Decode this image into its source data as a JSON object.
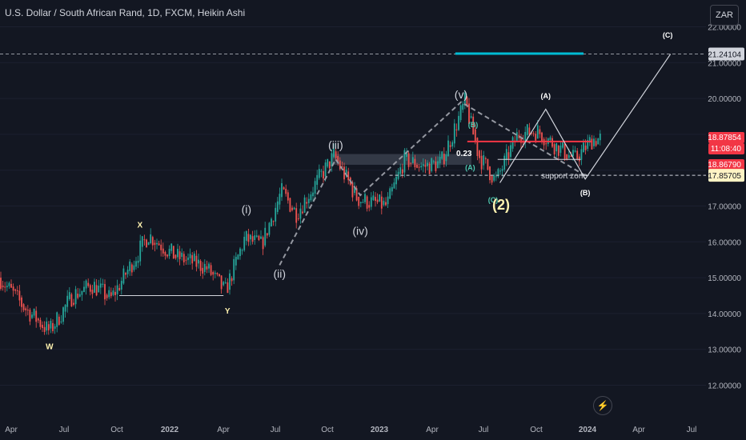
{
  "header": {
    "symbol_title": "U.S. Dollar / South African Rand, 1D, FXCM, Heikin Ashi",
    "currency_button": "ZAR"
  },
  "icons": {
    "alert": "lightning-bolt-icon"
  },
  "colors": {
    "background": "#131722",
    "up_candle": "#26a69a",
    "down_candle": "#ef5350",
    "wave_label": "#d1d4dc",
    "highlight_label": "#fff3b0",
    "teal_label": "#4ec9b0",
    "target_line": "#00bcd4"
  },
  "chart_data": {
    "type": "candlestick",
    "price_scale": {
      "ticks": [
        "22.00000",
        "21.00000",
        "20.00000",
        "19.00000",
        "18.00000",
        "17.00000",
        "16.00000",
        "15.00000",
        "14.00000",
        "13.00000",
        "12.00000"
      ],
      "current_price": "18.87854",
      "countdown": "11:08:40",
      "bid_price": "18.86790",
      "support_level": "17.85705",
      "target_level": "21.24104"
    },
    "time_axis": {
      "ticks": [
        "Apr",
        "Jul",
        "Oct",
        "2022",
        "Apr",
        "Jul",
        "Oct",
        "2023",
        "Apr",
        "Jul",
        "Oct",
        "2024",
        "Apr",
        "Jul"
      ]
    },
    "price_path": [
      {
        "date": "2021-03-10",
        "price": 15.0
      },
      {
        "date": "2021-04-20",
        "price": 14.2
      },
      {
        "date": "2021-06-05",
        "price": 13.5
      },
      {
        "date": "2021-07-15",
        "price": 14.5
      },
      {
        "date": "2021-08-20",
        "price": 14.8
      },
      {
        "date": "2021-09-20",
        "price": 14.4
      },
      {
        "date": "2021-11-25",
        "price": 16.2
      },
      {
        "date": "2022-01-10",
        "price": 15.6
      },
      {
        "date": "2022-03-05",
        "price": 15.3
      },
      {
        "date": "2022-04-08",
        "price": 14.6
      },
      {
        "date": "2022-05-12",
        "price": 16.1
      },
      {
        "date": "2022-06-10",
        "price": 15.9
      },
      {
        "date": "2022-07-15",
        "price": 17.4
      },
      {
        "date": "2022-08-10",
        "price": 16.8
      },
      {
        "date": "2022-10-15",
        "price": 18.4
      },
      {
        "date": "2022-11-25",
        "price": 17.2
      },
      {
        "date": "2023-01-15",
        "price": 17.0
      },
      {
        "date": "2023-02-15",
        "price": 18.3
      },
      {
        "date": "2023-03-20",
        "price": 18.1
      },
      {
        "date": "2023-04-20",
        "price": 18.2
      },
      {
        "date": "2023-06-01",
        "price": 19.9
      },
      {
        "date": "2023-06-25",
        "price": 18.4
      },
      {
        "date": "2023-07-25",
        "price": 17.7
      },
      {
        "date": "2023-09-01",
        "price": 19.0
      },
      {
        "date": "2023-10-05",
        "price": 19.1
      },
      {
        "date": "2023-11-05",
        "price": 18.7
      },
      {
        "date": "2023-12-10",
        "price": 18.3
      },
      {
        "date": "2024-01-10",
        "price": 18.87
      }
    ],
    "wave_labels": [
      {
        "text": "W",
        "date": "2021-06-05",
        "price": 13.0
      },
      {
        "text": "X",
        "date": "2021-11-10",
        "price": 16.4
      },
      {
        "text": "Y",
        "date": "2022-04-12",
        "price": 14.0
      },
      {
        "text": "(i)",
        "date": "2022-05-15",
        "price": 16.8
      },
      {
        "text": "(ii)",
        "date": "2022-07-12",
        "price": 15.0
      },
      {
        "text": "(iii)",
        "date": "2022-10-18",
        "price": 18.6
      },
      {
        "text": "(iv)",
        "date": "2022-11-30",
        "price": 16.2
      },
      {
        "text": "(v)",
        "date": "2023-05-25",
        "price": 20.0
      },
      {
        "text": "(A)",
        "date": "2023-06-10",
        "price": 18.0
      },
      {
        "text": "(B)",
        "date": "2023-06-15",
        "price": 19.2
      },
      {
        "text": "(C)",
        "date": "2023-07-20",
        "price": 17.1
      },
      {
        "text": "(2)",
        "date": "2023-08-03",
        "price": 16.9
      },
      {
        "text": "(A)",
        "date": "2023-10-20",
        "price": 20.0
      },
      {
        "text": "(B)",
        "date": "2023-12-28",
        "price": 17.3
      },
      {
        "text": "(C)",
        "date": "2024-05-20",
        "price": 21.7
      }
    ],
    "annotations": {
      "fib_label": "0.23",
      "support_zone_label": "support zone"
    },
    "projection_path": [
      {
        "date": "2023-08-01",
        "price": 17.65
      },
      {
        "date": "2023-10-20",
        "price": 19.7
      },
      {
        "date": "2023-12-28",
        "price": 17.75
      },
      {
        "date": "2024-05-25",
        "price": 21.24
      }
    ],
    "impulse_dashed_path": [
      {
        "date": "2022-07-12",
        "price": 15.35
      },
      {
        "date": "2022-10-18",
        "price": 18.3
      },
      {
        "date": "2022-11-30",
        "price": 17.3
      },
      {
        "date": "2023-05-25",
        "price": 19.9
      },
      {
        "date": "2023-12-28",
        "price": 17.85
      }
    ],
    "xy_base_line": {
      "start": "2021-10-05",
      "end": "2022-04-05",
      "price": 14.5
    },
    "resistance_line": {
      "start": "2023-06-05",
      "end": "2024-01-10",
      "price": 18.8
    },
    "support_box_line": {
      "start": "2023-07-28",
      "end": "2023-12-20",
      "price": 18.3
    },
    "fib_zone": {
      "start": "2022-10-12",
      "end": "2023-06-12",
      "low": 18.15,
      "high": 18.45
    },
    "target_segment": {
      "start": "2023-05-15",
      "end": "2023-12-25",
      "price": 21.24
    },
    "ylim": [
      11.6,
      22.3
    ]
  }
}
